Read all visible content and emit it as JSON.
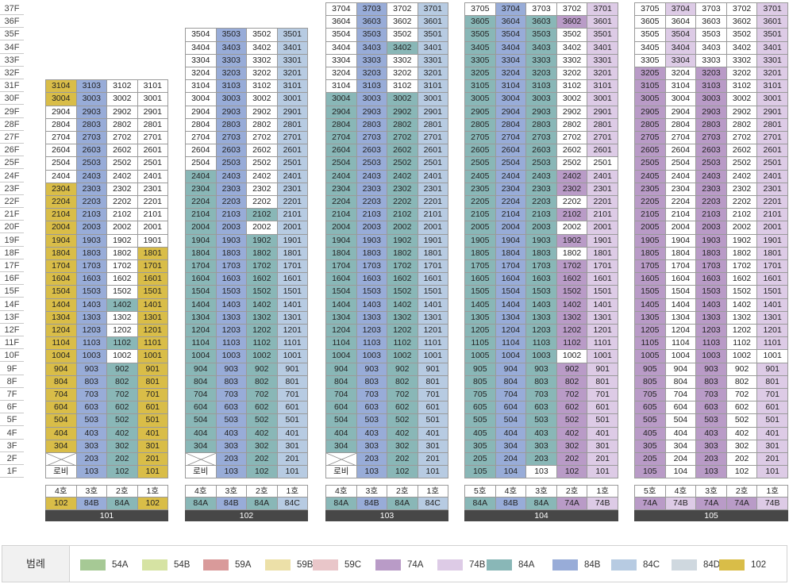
{
  "floors": [
    "37F",
    "36F",
    "35F",
    "34F",
    "33F",
    "32F",
    "31F",
    "30F",
    "29F",
    "28F",
    "27F",
    "26F",
    "25F",
    "24F",
    "23F",
    "22F",
    "21F",
    "20F",
    "19F",
    "18F",
    "17F",
    "16F",
    "15F",
    "14F",
    "13F",
    "12F",
    "11F",
    "10F",
    "9F",
    "8F",
    "7F",
    "6F",
    "5F",
    "4F",
    "3F",
    "2F",
    "1F"
  ],
  "colors": {
    "54A": "#a6c995",
    "54B": "#d6e3a3",
    "59A": "#d99a9a",
    "59B": "#ece0a8",
    "59C": "#e9c6c9",
    "74A": "#b99bc7",
    "74B": "#ddcbe6",
    "84A": "#89b7b7",
    "84B": "#98acd8",
    "84C": "#b7cbe2",
    "84D": "#cfd8df",
    "102": "#d9bd48",
    "white": "#ffffff"
  },
  "legend": {
    "title": "범례",
    "items": [
      "54A",
      "54B",
      "59A",
      "59B",
      "59C",
      "74A",
      "74B",
      "84A",
      "84B",
      "84C",
      "84D",
      "102"
    ]
  },
  "buildings": [
    {
      "name": "101",
      "lines": [
        {
          "ho": "4호",
          "type": "102"
        },
        {
          "ho": "3호",
          "type": "84B"
        },
        {
          "ho": "2호",
          "type": "84A"
        },
        {
          "ho": "1호",
          "type": "102"
        }
      ],
      "top": [
        31,
        31,
        31,
        31
      ],
      "lobby_label": "로비",
      "whites": [
        "3102",
        "3101",
        "3002",
        "3001",
        "2904",
        "2902",
        "2901",
        "2804",
        "2802",
        "2801",
        "2704",
        "2702",
        "2701",
        "2604",
        "2602",
        "2601",
        "2504",
        "2502",
        "2501",
        "2404",
        "2402",
        "2401",
        "2302",
        "2301",
        "2202",
        "2201",
        "2102",
        "2101",
        "2002",
        "2001",
        "1902",
        "1901",
        "1802",
        "1702",
        "1602",
        "1502",
        "1302",
        "1202",
        "1002"
      ],
      "overrides": {}
    },
    {
      "name": "102",
      "lines": [
        {
          "ho": "4호",
          "type": "84A"
        },
        {
          "ho": "3호",
          "type": "84B"
        },
        {
          "ho": "2호",
          "type": "84A"
        },
        {
          "ho": "1호",
          "type": "84C"
        }
      ],
      "top": [
        35,
        35,
        35,
        35
      ],
      "lobby_label": "로비",
      "whites": [
        "3504",
        "3502",
        "3404",
        "3402",
        "3304",
        "3302",
        "3204",
        "3202",
        "3104",
        "3102",
        "3004",
        "3002",
        "2904",
        "2902",
        "2804",
        "2802",
        "2704",
        "2702",
        "2604",
        "2602",
        "2504",
        "2502",
        "2402",
        "2302",
        "2202",
        "2002"
      ],
      "overrides": {}
    },
    {
      "name": "103",
      "lines": [
        {
          "ho": "4호",
          "type": "84A"
        },
        {
          "ho": "3호",
          "type": "84B"
        },
        {
          "ho": "2호",
          "type": "84A"
        },
        {
          "ho": "1호",
          "type": "84C"
        }
      ],
      "top": [
        37,
        37,
        37,
        37
      ],
      "lobby_label": "로비",
      "whites": [
        "3704",
        "3702",
        "3604",
        "3602",
        "3504",
        "3502",
        "3404",
        "3304",
        "3302",
        "3204",
        "3202",
        "3104",
        "3102"
      ],
      "overrides": {
        "3603": "84B",
        "3703": "84B"
      }
    },
    {
      "name": "104",
      "lines": [
        {
          "ho": "5호",
          "type": "84A"
        },
        {
          "ho": "4호",
          "type": "84B"
        },
        {
          "ho": "3호",
          "type": "84A"
        },
        {
          "ho": "2호",
          "type": "74A"
        },
        {
          "ho": "1호",
          "type": "74B"
        }
      ],
      "top": [
        37,
        37,
        37,
        37,
        37
      ],
      "lobby_label": "",
      "whites": [
        "3705",
        "3703",
        "3702",
        "3502",
        "3402",
        "3302",
        "3202",
        "3102",
        "3002",
        "2902",
        "2802",
        "2702",
        "2602",
        "2502",
        "2501",
        "2202",
        "2002",
        "1802",
        "1002",
        "103"
      ],
      "overrides": {
        "2602": "74A",
        "2601": "74B"
      }
    },
    {
      "name": "105",
      "lines": [
        {
          "ho": "5호",
          "type": "74A"
        },
        {
          "ho": "4호",
          "type": "74B"
        },
        {
          "ho": "3호",
          "type": "74A"
        },
        {
          "ho": "2호",
          "type": "74A"
        },
        {
          "ho": "1호",
          "type": "74B"
        }
      ],
      "top": [
        37,
        37,
        37,
        37,
        37
      ],
      "lobby_label": "",
      "whites": [
        "3705",
        "3703",
        "3702",
        "3605",
        "3604",
        "3603",
        "3602",
        "3505",
        "3503",
        "3502",
        "3405",
        "3403",
        "3402",
        "3305",
        "3303",
        "3302",
        "3204",
        "3202",
        "3104",
        "3102",
        "3004",
        "3002",
        "2904",
        "2902",
        "2804",
        "2802",
        "2704",
        "2702",
        "2604",
        "2602",
        "2504",
        "2502",
        "2404",
        "2402",
        "2304",
        "2302",
        "2204",
        "2202",
        "2104",
        "2102",
        "2004",
        "2002",
        "1904",
        "1902",
        "1804",
        "1802",
        "1704",
        "1702",
        "1604",
        "1602",
        "1504",
        "1502",
        "1404",
        "1402",
        "1304",
        "1302",
        "1204",
        "1202",
        "1104",
        "1102",
        "1004",
        "1002",
        "1001",
        "904",
        "902",
        "804",
        "802",
        "704",
        "702",
        "604",
        "602",
        "504",
        "502",
        "404",
        "402",
        "304",
        "302",
        "204",
        "202",
        "104",
        "102"
      ],
      "overrides": {
        "3703": "74A",
        "3603": "74A",
        "2603": "74A",
        "2302": "white"
      }
    }
  ]
}
